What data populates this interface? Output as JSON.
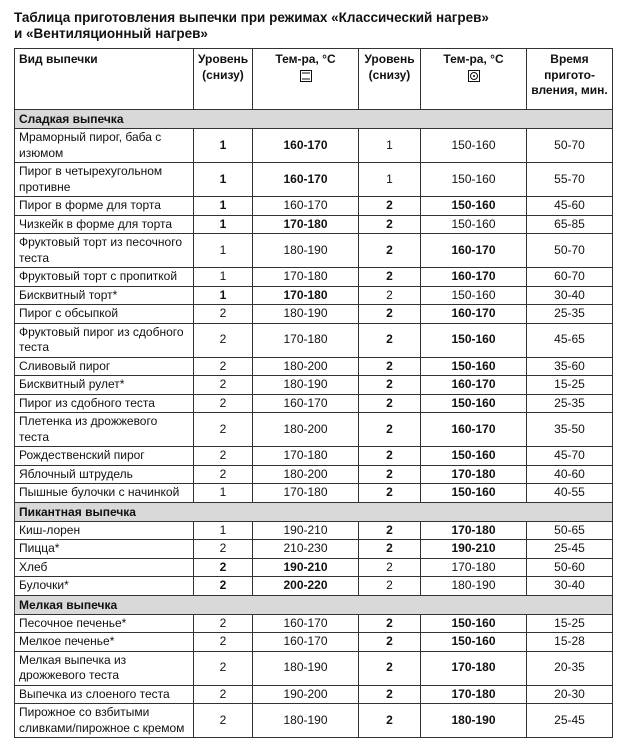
{
  "title": [
    "Таблица приготовления выпечки при режимах «Классический нагрев»",
    "и «Вентиляционный нагрев»"
  ],
  "table": {
    "header": [
      "Вид выпечки",
      "Уровень (снизу)",
      "Тем-ра, °C",
      "Уровень (снизу)",
      "Тем-ра, °C",
      "Время пригото-вления, мин."
    ],
    "sections": [
      {
        "name": "Сладкая выпечка",
        "rows": [
          {
            "cells": [
              "Мраморный пирог, баба с изюмом",
              "1",
              "160-170",
              "1",
              "150-160",
              "50-70"
            ],
            "bold_columns": [
              1,
              2
            ]
          },
          {
            "cells": [
              "Пирог в четырехугольном противне",
              "1",
              "160-170",
              "1",
              "150-160",
              "55-70"
            ],
            "bold_columns": [
              1,
              2
            ]
          },
          {
            "cells": [
              "Пирог в форме для торта",
              "1",
              "160-170",
              "2",
              "150-160",
              "45-60"
            ],
            "bold_columns": [
              1,
              3,
              4
            ]
          },
          {
            "cells": [
              "Чизкейк в форме для торта",
              "1",
              "170-180",
              "2",
              "150-160",
              "65-85"
            ],
            "bold_columns": [
              1,
              2,
              3
            ]
          },
          {
            "cells": [
              "Фруктовый торт из песочного теста",
              "1",
              "180-190",
              "2",
              "160-170",
              "50-70"
            ],
            "bold_columns": [
              3,
              4
            ]
          },
          {
            "cells": [
              "Фруктовый торт с пропиткой",
              "1",
              "170-180",
              "2",
              "160-170",
              "60-70"
            ],
            "bold_columns": [
              3,
              4
            ]
          },
          {
            "cells": [
              "Бисквитный торт*",
              "1",
              "170-180",
              "2",
              "150-160",
              "30-40"
            ],
            "bold_columns": [
              1,
              2
            ]
          },
          {
            "cells": [
              "Пирог с обсыпкой",
              "2",
              "180-190",
              "2",
              "160-170",
              "25-35"
            ],
            "bold_columns": [
              3,
              4
            ]
          },
          {
            "cells": [
              "Фруктовый пирог из сдобного теста",
              "2",
              "170-180",
              "2",
              "150-160",
              "45-65"
            ],
            "bold_columns": [
              3,
              4
            ]
          },
          {
            "cells": [
              "Сливовый пирог",
              "2",
              "180-200",
              "2",
              "150-160",
              "35-60"
            ],
            "bold_columns": [
              3,
              4
            ]
          },
          {
            "cells": [
              "Бисквитный рулет*",
              "2",
              "180-190",
              "2",
              "160-170",
              "15-25"
            ],
            "bold_columns": [
              3,
              4
            ]
          },
          {
            "cells": [
              "Пирог из сдобного теста",
              "2",
              "160-170",
              "2",
              "150-160",
              "25-35"
            ],
            "bold_columns": [
              3,
              4
            ]
          },
          {
            "cells": [
              "Плетенка из дрожжевого теста",
              "2",
              "180-200",
              "2",
              "160-170",
              "35-50"
            ],
            "bold_columns": [
              3,
              4
            ]
          },
          {
            "cells": [
              "Рождественский пирог",
              "2",
              "170-180",
              "2",
              "150-160",
              "45-70"
            ],
            "bold_columns": [
              3,
              4
            ]
          },
          {
            "cells": [
              "Яблочный штрудель",
              "2",
              "180-200",
              "2",
              "170-180",
              "40-60"
            ],
            "bold_columns": [
              3,
              4
            ]
          },
          {
            "cells": [
              "Пышные булочки с начинкой",
              "1",
              "170-180",
              "2",
              "150-160",
              "40-55"
            ],
            "bold_columns": [
              3,
              4
            ]
          }
        ]
      },
      {
        "name": "Пикантная выпечка",
        "rows": [
          {
            "cells": [
              "Киш-лорен",
              "1",
              "190-210",
              "2",
              "170-180",
              "50-65"
            ],
            "bold_columns": [
              3,
              4
            ]
          },
          {
            "cells": [
              "Пицца*",
              "2",
              "210-230",
              "2",
              "190-210",
              "25-45"
            ],
            "bold_columns": [
              3,
              4
            ]
          },
          {
            "cells": [
              "Хлеб",
              "2",
              "190-210",
              "2",
              "170-180",
              "50-60"
            ],
            "bold_columns": [
              1,
              2
            ]
          },
          {
            "cells": [
              "Булочки*",
              "2",
              "200-220",
              "2",
              "180-190",
              "30-40"
            ],
            "bold_columns": [
              1,
              2
            ]
          }
        ]
      },
      {
        "name": "Мелкая выпечка",
        "rows": [
          {
            "cells": [
              "Песочное печенье*",
              "2",
              "160-170",
              "2",
              "150-160",
              "15-25"
            ],
            "bold_columns": [
              3,
              4
            ]
          },
          {
            "cells": [
              "Мелкое печенье*",
              "2",
              "160-170",
              "2",
              "150-160",
              "15-28"
            ],
            "bold_columns": [
              3,
              4
            ]
          },
          {
            "cells": [
              "Мелкая выпечка из дрожжевого теста",
              "2",
              "180-190",
              "2",
              "170-180",
              "20-35"
            ],
            "bold_columns": [
              3,
              4
            ]
          },
          {
            "cells": [
              "Выпечка из слоеного теста",
              "2",
              "190-200",
              "2",
              "170-180",
              "20-30"
            ],
            "bold_columns": [
              3,
              4
            ]
          },
          {
            "cells": [
              "Пирожное со взбитыми сливками/пирожное с кремом",
              "2",
              "180-190",
              "2",
              "180-190",
              "25-45"
            ],
            "bold_columns": [
              3,
              4
            ]
          }
        ]
      }
    ]
  }
}
